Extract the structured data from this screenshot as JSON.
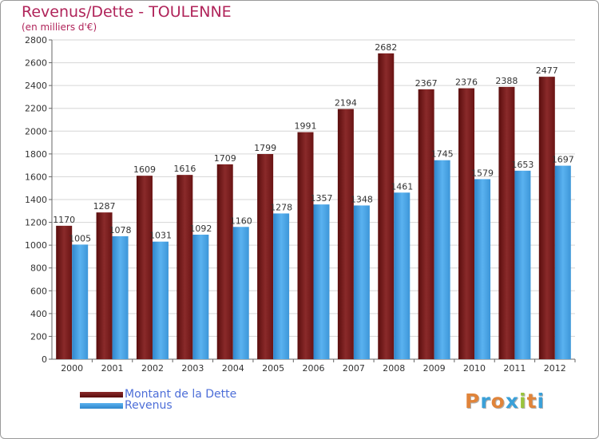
{
  "title": "Revenus/Dette - TOULENNE",
  "subtitle": "(en milliers d'€)",
  "legend": {
    "debt_label": "Montant de la Dette",
    "revenue_label": "Revenus"
  },
  "logo": {
    "text": "Proxiti"
  },
  "colors": {
    "title": "#b0245a",
    "debt": "#7a1c1c",
    "revenue": "#4aa3e6",
    "legend_text": "#4d6ed8"
  },
  "chart_data": {
    "type": "bar",
    "title": "Revenus/Dette - TOULENNE",
    "ylabel": "(en milliers d'€)",
    "xlabel": "",
    "categories": [
      "2000",
      "2001",
      "2002",
      "2003",
      "2004",
      "2005",
      "2006",
      "2007",
      "2008",
      "2009",
      "2010",
      "2011",
      "2012"
    ],
    "series": [
      {
        "name": "Montant de la Dette",
        "values": [
          1170,
          1287,
          1609,
          1616,
          1709,
          1799,
          1991,
          2194,
          2682,
          2367,
          2376,
          2388,
          2477
        ]
      },
      {
        "name": "Revenus",
        "values": [
          1005,
          1078,
          1031,
          1092,
          1160,
          1278,
          1357,
          1348,
          1461,
          1745,
          1579,
          1653,
          1697
        ]
      }
    ],
    "ylim": [
      0,
      2800
    ],
    "yticks": [
      0,
      200,
      400,
      600,
      800,
      1000,
      1200,
      1400,
      1600,
      1800,
      2000,
      2200,
      2400,
      2600,
      2800
    ],
    "grid": true,
    "legend_position": "bottom-left"
  }
}
